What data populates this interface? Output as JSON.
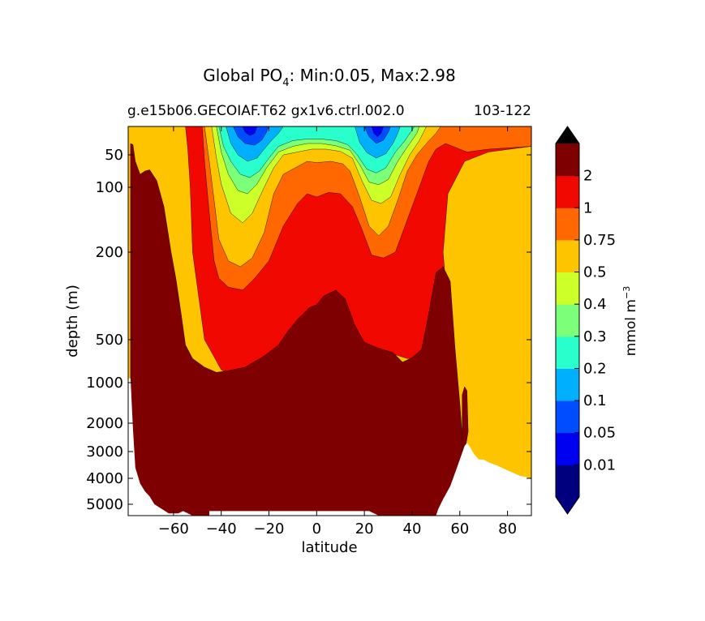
{
  "chart_data": {
    "type": "contourf",
    "title_prefix": "Global PO",
    "title_subscript": "4",
    "title_suffix": ": Min:0.05, Max:2.98",
    "subtitle_left": "g.e15b06.GECOIAF.T62 gx1v6.ctrl.002.0",
    "subtitle_right": "103-122",
    "xlabel": "latitude",
    "ylabel": "depth (m)",
    "xlim": [
      -79,
      90
    ],
    "ylim": [
      5500,
      0
    ],
    "x_ticks": [
      -60,
      -40,
      -20,
      0,
      20,
      40,
      60,
      80
    ],
    "x_tick_labels": [
      "−60",
      "−40",
      "−20",
      "0",
      "20",
      "40",
      "60",
      "80"
    ],
    "y_ticks": [
      50,
      100,
      200,
      500,
      1000,
      2000,
      3000,
      4000,
      5000
    ],
    "y_tick_labels": [
      "50",
      "100",
      "200",
      "500",
      "1000",
      "2000",
      "3000",
      "4000",
      "5000"
    ],
    "colorbar": {
      "label_main": "mmol m",
      "label_exp": "−3",
      "levels": [
        0.01,
        0.05,
        0.1,
        0.2,
        0.3,
        0.4,
        0.5,
        0.75,
        1,
        2
      ],
      "tick_labels": [
        "0.01",
        "0.05",
        "0.1",
        "0.2",
        "0.3",
        "0.4",
        "0.5",
        "0.75",
        "1",
        "2"
      ],
      "colors": [
        "#00007f",
        "#0000f0",
        "#004cff",
        "#00b0ff",
        "#29ffcd",
        "#7cff79",
        "#cdff29",
        "#ffc400",
        "#ff6800",
        "#f10800",
        "#7f0000"
      ],
      "under_color": "#000080",
      "over_color": "#000000",
      "extend": "both"
    },
    "contour_bands": [
      {
        "level": 1,
        "color": "#f10800",
        "boundary": [
          [
            -78,
            0
          ],
          [
            -55,
            0
          ],
          [
            -54,
            40
          ],
          [
            -53,
            100
          ],
          [
            -52,
            200
          ],
          [
            -50,
            320
          ],
          [
            -47,
            500
          ],
          [
            -43,
            700
          ],
          [
            -40,
            850
          ],
          [
            -35,
            920
          ],
          [
            -25,
            880
          ],
          [
            -15,
            700
          ],
          [
            -8,
            520
          ],
          [
            0,
            420
          ],
          [
            8,
            430
          ],
          [
            12,
            470
          ],
          [
            18,
            520
          ],
          [
            24,
            600
          ],
          [
            30,
            650
          ],
          [
            38,
            720
          ],
          [
            45,
            700
          ],
          [
            50,
            620
          ],
          [
            54,
            520
          ],
          [
            55,
            400
          ],
          [
            54,
            300
          ],
          [
            53,
            200
          ],
          [
            55,
            110
          ],
          [
            62,
            60
          ],
          [
            72,
            45
          ],
          [
            90,
            35
          ],
          [
            90,
            0
          ],
          [
            -78,
            0
          ]
        ]
      },
      {
        "level": 0.75,
        "color": "#ff6800",
        "boundary": [
          [
            -52,
            0
          ],
          [
            -48,
            0
          ],
          [
            -47,
            60
          ],
          [
            -45,
            140
          ],
          [
            -43,
            230
          ],
          [
            -41,
            290
          ],
          [
            -37,
            320
          ],
          [
            -31,
            330
          ],
          [
            -26,
            290
          ],
          [
            -20,
            230
          ],
          [
            -14,
            160
          ],
          [
            -8,
            125
          ],
          [
            -4,
            110
          ],
          [
            0,
            115
          ],
          [
            5,
            108
          ],
          [
            10,
            110
          ],
          [
            15,
            130
          ],
          [
            19,
            165
          ],
          [
            23,
            210
          ],
          [
            28,
            220
          ],
          [
            33,
            200
          ],
          [
            38,
            150
          ],
          [
            43,
            100
          ],
          [
            47,
            60
          ],
          [
            50,
            40
          ],
          [
            54,
            30
          ],
          [
            57,
            35
          ],
          [
            63,
            45
          ],
          [
            72,
            40
          ],
          [
            90,
            35
          ],
          [
            90,
            0
          ],
          [
            -52,
            0
          ]
        ]
      },
      {
        "level": 0.5,
        "color": "#ffc400",
        "boundary": [
          [
            -47,
            0
          ],
          [
            -45,
            60
          ],
          [
            -43,
            120
          ],
          [
            -41,
            180
          ],
          [
            -37,
            230
          ],
          [
            -32,
            250
          ],
          [
            -27,
            220
          ],
          [
            -22,
            170
          ],
          [
            -18,
            110
          ],
          [
            -14,
            80
          ],
          [
            -9,
            70
          ],
          [
            -4,
            60
          ],
          [
            0,
            62
          ],
          [
            6,
            60
          ],
          [
            11,
            64
          ],
          [
            14,
            75
          ],
          [
            18,
            115
          ],
          [
            22,
            160
          ],
          [
            26,
            175
          ],
          [
            30,
            160
          ],
          [
            34,
            120
          ],
          [
            38,
            75
          ],
          [
            42,
            50
          ],
          [
            46,
            30
          ],
          [
            50,
            12
          ],
          [
            52,
            0
          ],
          [
            -47,
            0
          ]
        ]
      },
      {
        "level": 0.4,
        "color": "#cdff29",
        "boundary": [
          [
            -44,
            0
          ],
          [
            -42,
            55
          ],
          [
            -40,
            95
          ],
          [
            -36,
            140
          ],
          [
            -31,
            155
          ],
          [
            -27,
            140
          ],
          [
            -22,
            100
          ],
          [
            -18,
            70
          ],
          [
            -14,
            50
          ],
          [
            -8,
            45
          ],
          [
            -2,
            40
          ],
          [
            4,
            40
          ],
          [
            10,
            44
          ],
          [
            15,
            55
          ],
          [
            19,
            90
          ],
          [
            23,
            120
          ],
          [
            27,
            125
          ],
          [
            31,
            115
          ],
          [
            35,
            80
          ],
          [
            39,
            50
          ],
          [
            43,
            25
          ],
          [
            46,
            0
          ],
          [
            -44,
            0
          ]
        ]
      },
      {
        "level": 0.3,
        "color": "#7cff79",
        "boundary": [
          [
            -42,
            0
          ],
          [
            -40,
            45
          ],
          [
            -37,
            80
          ],
          [
            -33,
            105
          ],
          [
            -29,
            110
          ],
          [
            -25,
            95
          ],
          [
            -21,
            70
          ],
          [
            -16,
            45
          ],
          [
            -10,
            35
          ],
          [
            -4,
            30
          ],
          [
            2,
            30
          ],
          [
            8,
            34
          ],
          [
            14,
            42
          ],
          [
            18,
            65
          ],
          [
            22,
            92
          ],
          [
            26,
            96
          ],
          [
            30,
            88
          ],
          [
            34,
            60
          ],
          [
            38,
            36
          ],
          [
            42,
            12
          ],
          [
            43,
            0
          ],
          [
            -42,
            0
          ]
        ]
      },
      {
        "level": 0.2,
        "color": "#29ffcd",
        "boundary": [
          [
            -41,
            0
          ],
          [
            -39,
            35
          ],
          [
            -36,
            60
          ],
          [
            -32,
            80
          ],
          [
            -28,
            85
          ],
          [
            -24,
            75
          ],
          [
            -20,
            55
          ],
          [
            -16,
            35
          ],
          [
            -10,
            25
          ],
          [
            -4,
            22
          ],
          [
            2,
            22
          ],
          [
            8,
            25
          ],
          [
            13,
            32
          ],
          [
            17,
            50
          ],
          [
            21,
            72
          ],
          [
            25,
            78
          ],
          [
            29,
            70
          ],
          [
            33,
            45
          ],
          [
            37,
            25
          ],
          [
            41,
            0
          ],
          [
            -41,
            0
          ]
        ]
      },
      {
        "level": 0.1,
        "color": "#00b0ff",
        "boundary": [
          [
            -38,
            0
          ],
          [
            -36,
            30
          ],
          [
            -33,
            50
          ],
          [
            -29,
            60
          ],
          [
            -25,
            55
          ],
          [
            -22,
            40
          ],
          [
            -19,
            25
          ],
          [
            -16,
            12
          ],
          [
            -14,
            0
          ],
          [
            -38,
            0
          ]
        ]
      },
      {
        "level": 0.1,
        "color": "#00b0ff",
        "boundary": [
          [
            16,
            0
          ],
          [
            18,
            28
          ],
          [
            21,
            46
          ],
          [
            25,
            55
          ],
          [
            29,
            48
          ],
          [
            32,
            30
          ],
          [
            34,
            12
          ],
          [
            35,
            0
          ],
          [
            16,
            0
          ]
        ]
      },
      {
        "level": 0.05,
        "color": "#004cff",
        "boundary": [
          [
            -35,
            0
          ],
          [
            -33,
            18
          ],
          [
            -30,
            30
          ],
          [
            -26,
            33
          ],
          [
            -23,
            24
          ],
          [
            -21,
            10
          ],
          [
            -20,
            0
          ],
          [
            -35,
            0
          ]
        ]
      },
      {
        "level": 0.05,
        "color": "#004cff",
        "boundary": [
          [
            20,
            0
          ],
          [
            22,
            18
          ],
          [
            25,
            30
          ],
          [
            28,
            24
          ],
          [
            30,
            10
          ],
          [
            31,
            0
          ],
          [
            20,
            0
          ]
        ]
      },
      {
        "level": 0.01,
        "color": "#0000f0",
        "boundary": [
          [
            -31,
            0
          ],
          [
            -30,
            10
          ],
          [
            -28,
            16
          ],
          [
            -26,
            12
          ],
          [
            -25,
            0
          ],
          [
            -31,
            0
          ]
        ]
      },
      {
        "level": 0.01,
        "color": "#0000f0",
        "boundary": [
          [
            23,
            0
          ],
          [
            24,
            12
          ],
          [
            25.5,
            18
          ],
          [
            27,
            12
          ],
          [
            28,
            0
          ],
          [
            23,
            0
          ]
        ]
      }
    ],
    "max_band": {
      "level": 2,
      "color": "#7f0000",
      "boundary": [
        [
          -78,
          1000
        ],
        [
          -78,
          30
        ],
        [
          -77,
          32
        ],
        [
          -76,
          60
        ],
        [
          -74,
          80
        ],
        [
          -72,
          75
        ],
        [
          -70,
          73
        ],
        [
          -67,
          90
        ],
        [
          -64,
          130
        ],
        [
          -61,
          200
        ],
        [
          -59,
          290
        ],
        [
          -57,
          400
        ],
        [
          -55,
          560
        ],
        [
          -52,
          720
        ],
        [
          -47,
          820
        ],
        [
          -42,
          880
        ],
        [
          -37,
          860
        ],
        [
          -30,
          820
        ],
        [
          -22,
          690
        ],
        [
          -16,
          560
        ],
        [
          -12,
          470
        ],
        [
          -8,
          430
        ],
        [
          -3,
          390
        ],
        [
          0,
          380
        ],
        [
          3,
          350
        ],
        [
          8,
          330
        ],
        [
          12,
          360
        ],
        [
          16,
          450
        ],
        [
          20,
          530
        ],
        [
          26,
          600
        ],
        [
          32,
          650
        ],
        [
          36,
          760
        ],
        [
          40,
          710
        ],
        [
          44,
          610
        ],
        [
          47,
          410
        ],
        [
          50,
          270
        ],
        [
          53,
          250
        ],
        [
          56,
          300
        ],
        [
          58,
          600
        ],
        [
          60,
          1500
        ],
        [
          61.5,
          3000
        ],
        [
          61.5,
          5500
        ],
        [
          -78,
          5500
        ],
        [
          -78,
          1000
        ]
      ]
    },
    "land_mask": [
      {
        "boundary": [
          [
            -79,
            950
          ],
          [
            -78,
            950
          ],
          [
            -77,
            2200
          ],
          [
            -76,
            3600
          ],
          [
            -74,
            4200
          ],
          [
            -72,
            4500
          ],
          [
            -70,
            4700
          ],
          [
            -68,
            5000
          ],
          [
            -65,
            5200
          ],
          [
            -62,
            5400
          ],
          [
            -58,
            5400
          ],
          [
            -56,
            5300
          ],
          [
            -52,
            5500
          ],
          [
            -79,
            5500
          ],
          [
            -79,
            950
          ]
        ]
      },
      {
        "boundary": [
          [
            50,
            5500
          ],
          [
            51,
            5200
          ],
          [
            53,
            4800
          ],
          [
            56,
            4300
          ],
          [
            58,
            3800
          ],
          [
            60,
            3300
          ],
          [
            62,
            2800
          ],
          [
            63,
            2700
          ],
          [
            64,
            2800
          ],
          [
            66,
            3100
          ],
          [
            68,
            3300
          ],
          [
            70,
            3300
          ],
          [
            72,
            3400
          ],
          [
            75,
            3500
          ],
          [
            80,
            3700
          ],
          [
            85,
            3900
          ],
          [
            90,
            4000
          ],
          [
            90,
            5500
          ],
          [
            50,
            5500
          ]
        ]
      },
      {
        "boundary": [
          [
            -45,
            5300
          ],
          [
            -30,
            5300
          ],
          [
            -15,
            5300
          ],
          [
            0,
            5300
          ],
          [
            15,
            5300
          ],
          [
            22,
            5300
          ],
          [
            26,
            5500
          ],
          [
            -45,
            5500
          ],
          [
            -45,
            5300
          ]
        ]
      }
    ],
    "arctic_max": {
      "color": "#7f0000",
      "boundary": [
        [
          61,
          1300
        ],
        [
          62,
          1100
        ],
        [
          63,
          1200
        ],
        [
          63.5,
          2300
        ],
        [
          62.5,
          2800
        ],
        [
          61,
          3000
        ],
        [
          61,
          1300
        ]
      ]
    }
  }
}
